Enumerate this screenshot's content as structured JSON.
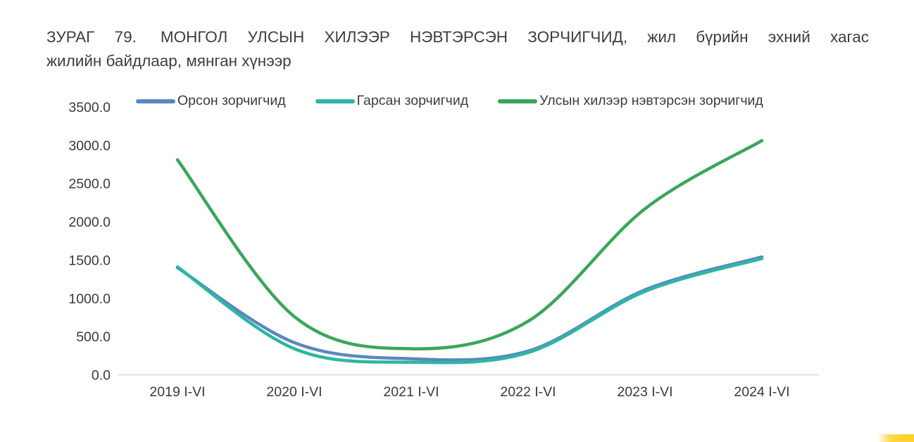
{
  "title": {
    "prefix": "ЗУРАГ 79.",
    "line1": "МОНГОЛ УЛСЫН ХИЛЭЭР НЭВТЭРСЭН ЗОРЧИГЧИД, жил бүрийн эхний хагас",
    "line2": "жилийн байдлаар, мянган хүнээр"
  },
  "colors": {
    "entered_blue": "#5b87c2",
    "exited_teal": "#2eb6a1",
    "total_green": "#3aa65c",
    "axis_line": "#d8d8d8",
    "text": "#3a3a3a",
    "corner_yellow": "#ffd12e"
  },
  "chart_data": {
    "type": "line",
    "title": "ЗУРАГ 79. МОНГОЛ УЛСЫН ХИЛЭЭР НЭВТЭРСЭН ЗОРЧИГЧИД, жил бүрийн эхний хагас жилийн байдлаар, мянган хүнээр",
    "unit": "мянган хүнээр",
    "categories": [
      "2019 I-VI",
      "2020 I-VI",
      "2021 I-VI",
      "2022 I-VI",
      "2023 I-VI",
      "2024 I-VI"
    ],
    "series": [
      {
        "name": "Орсон зорчигчид",
        "color": "#5b87c2",
        "values": [
          1400,
          420,
          210,
          310,
          1110,
          1540
        ]
      },
      {
        "name": "Гарсан зорчигчид",
        "color": "#2eb6a1",
        "values": [
          1410,
          340,
          165,
          290,
          1090,
          1520
        ]
      },
      {
        "name": "Улсын хилээр нэвтэрсэн зорчигчид",
        "color": "#3aa65c",
        "values": [
          2810,
          760,
          340,
          700,
          2170,
          3060
        ]
      }
    ],
    "ylim": [
      0,
      3500
    ],
    "ytick_step": 500,
    "ytick_labels": [
      "0.0",
      "500.0",
      "1000.0",
      "1500.0",
      "2000.0",
      "2500.0",
      "3000.0",
      "3500.0"
    ],
    "xlabel": "",
    "ylabel": "",
    "grid": false,
    "legend_position": "top"
  }
}
